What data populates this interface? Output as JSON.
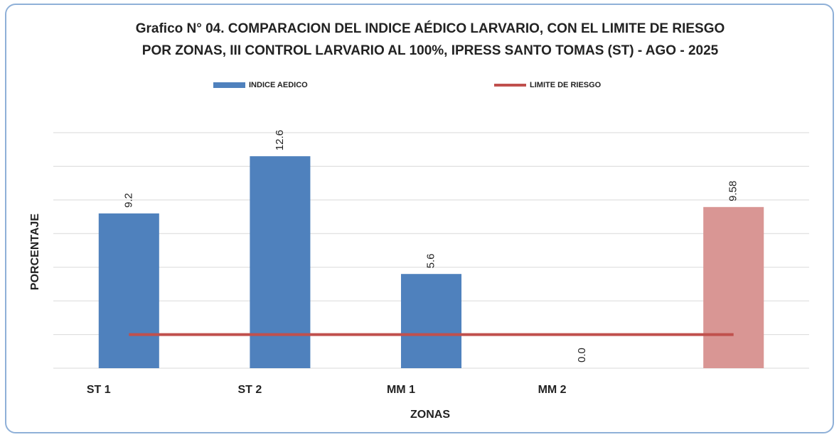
{
  "chart_data": {
    "type": "bar",
    "title": [
      "Grafico N° 04. COMPARACION DEL  INDICE AÉDICO LARVARIO, CON EL LIMITE DE RIESGO",
      "POR ZONAS, III CONTROL LARVARIO AL  100%,  IPRESS SANTO TOMAS (ST) - AGO - 2025"
    ],
    "categories": [
      "ST 1",
      "ST 2",
      "MM 1",
      "MM 2",
      null
    ],
    "x_label": "ZONAS",
    "y_label": "PORCENTAJE",
    "ylim": [
      0,
      14
    ],
    "yticks": [
      0,
      2,
      4,
      6,
      8,
      10,
      12,
      14
    ],
    "grid": true,
    "series": [
      {
        "name": "INDICE AEDICO",
        "color": "#4f81bd",
        "type": "bar",
        "values": [
          9.2,
          12.6,
          5.6,
          0,
          9.58
        ],
        "value_labels": [
          "9.2",
          "12.6",
          "5.6",
          "0.0",
          "9.58"
        ],
        "point_colors": [
          "#4f81bd",
          "#4f81bd",
          "#4f81bd",
          "#4f81bd",
          "#d99694"
        ]
      },
      {
        "name": "LIMITE DE RIESGO",
        "color": "#c0504d",
        "type": "line",
        "values": [
          2,
          2,
          2,
          2,
          2
        ]
      }
    ]
  }
}
